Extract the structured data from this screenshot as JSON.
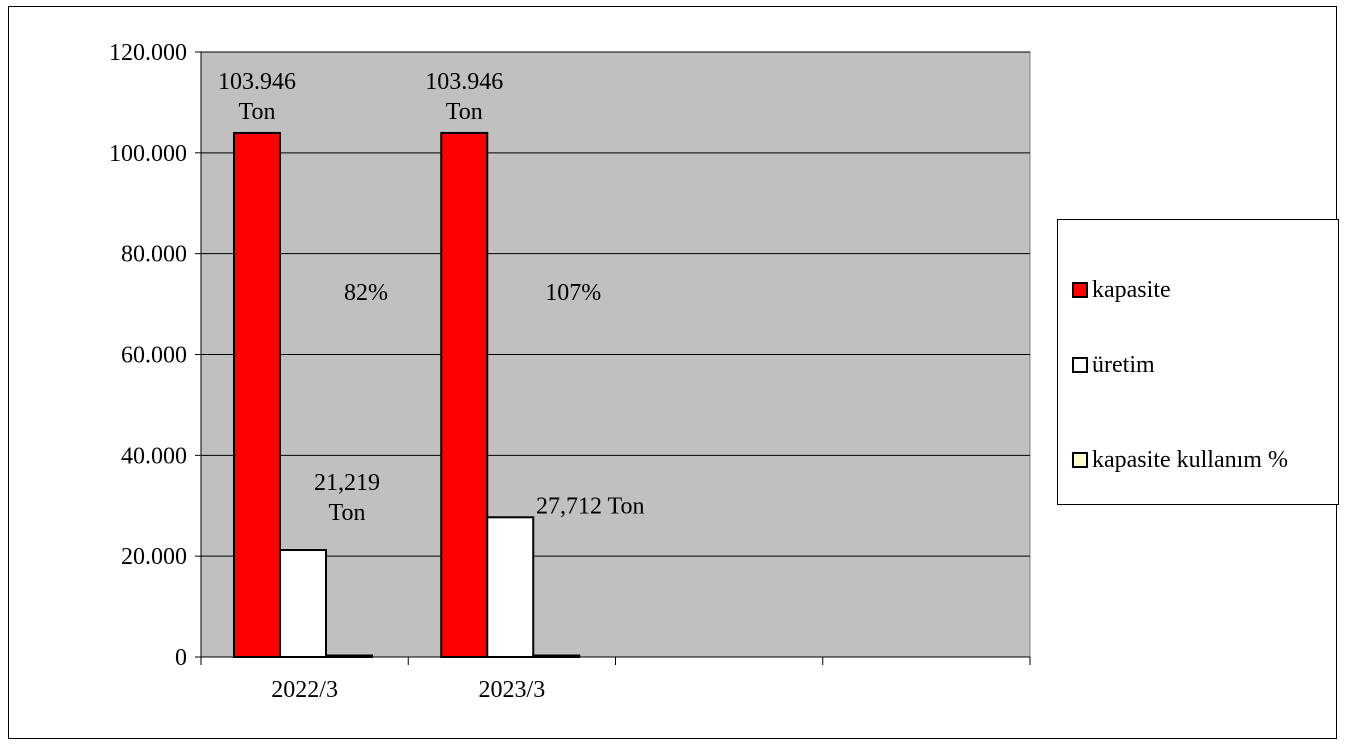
{
  "chart_data": {
    "type": "bar",
    "categories": [
      "2022/3",
      "2023/3",
      "",
      ""
    ],
    "series": [
      {
        "name": "kapasite",
        "color": "#ff0000",
        "values": [
          103946,
          103946,
          null,
          null
        ]
      },
      {
        "name": "üretim",
        "color": "#ffffff",
        "values": [
          21219,
          27712,
          null,
          null
        ]
      },
      {
        "name": "kapasite kullanım %",
        "color": "#ffffcc",
        "values": [
          82,
          107,
          null,
          null
        ]
      }
    ],
    "ylim": [
      0,
      120000
    ],
    "yticks": [
      0,
      20000,
      40000,
      60000,
      80000,
      100000,
      120000
    ],
    "ytick_labels": [
      "0",
      "20.000",
      "40.000",
      "60.000",
      "80.000",
      "100.000",
      "120.000"
    ],
    "grid": true,
    "plot_background": "#c0c0c0",
    "legend_position": "right",
    "data_labels": [
      {
        "category": "2022/3",
        "series": "kapasite",
        "lines": [
          "103.946",
          "Ton"
        ]
      },
      {
        "category": "2022/3",
        "series": "üretim",
        "lines": [
          "21,219",
          "Ton"
        ]
      },
      {
        "category": "2022/3",
        "series": "kapasite kullanım %",
        "lines": [
          "82%"
        ]
      },
      {
        "category": "2023/3",
        "series": "kapasite",
        "lines": [
          "103.946",
          "Ton"
        ]
      },
      {
        "category": "2023/3",
        "series": "üretim",
        "lines": [
          "27,712 Ton"
        ]
      },
      {
        "category": "2023/3",
        "series": "kapasite kullanım %",
        "lines": [
          "107%"
        ]
      }
    ]
  }
}
